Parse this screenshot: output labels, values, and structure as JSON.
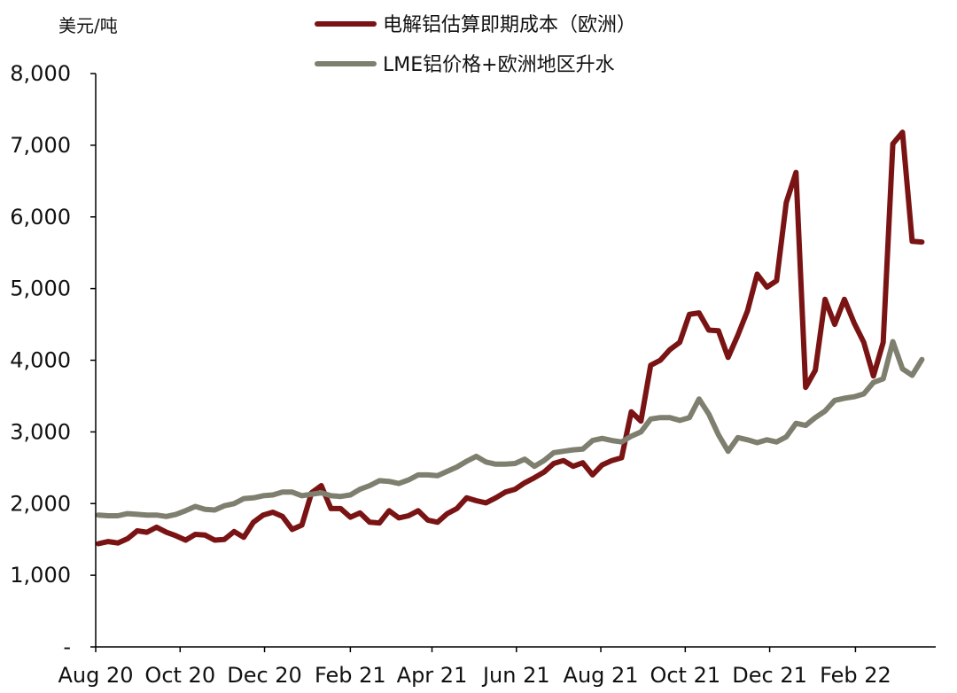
{
  "chart_data": {
    "type": "line",
    "y_unit_label": "美元/吨",
    "ylim": [
      0,
      8000
    ],
    "y_ticks": [
      {
        "value": 0,
        "label": "-"
      },
      {
        "value": 1000,
        "label": "1,000"
      },
      {
        "value": 2000,
        "label": "2,000"
      },
      {
        "value": 3000,
        "label": "3,000"
      },
      {
        "value": 4000,
        "label": "4,000"
      },
      {
        "value": 5000,
        "label": "5,000"
      },
      {
        "value": 6000,
        "label": "6,000"
      },
      {
        "value": 7000,
        "label": "7,000"
      },
      {
        "value": 8000,
        "label": "8,000"
      }
    ],
    "x_range": [
      "2020-08-01",
      "2022-03-31"
    ],
    "x_ticks": [
      {
        "date": "2020-08-01",
        "label": "Aug 20"
      },
      {
        "date": "2020-10-01",
        "label": "Oct 20"
      },
      {
        "date": "2020-12-01",
        "label": "Dec 20"
      },
      {
        "date": "2021-02-01",
        "label": "Feb 21"
      },
      {
        "date": "2021-04-01",
        "label": "Apr 21"
      },
      {
        "date": "2021-06-01",
        "label": "Jun 21"
      },
      {
        "date": "2021-08-01",
        "label": "Aug 21"
      },
      {
        "date": "2021-10-01",
        "label": "Oct 21"
      },
      {
        "date": "2021-12-01",
        "label": "Dec 21"
      },
      {
        "date": "2022-02-01",
        "label": "Feb 22"
      }
    ],
    "grid": false,
    "legend_position": "top",
    "series": [
      {
        "name": "电解铝估算即期成本（欧洲）",
        "color": "#7a1414",
        "points": [
          [
            "2020-08-03",
            1440
          ],
          [
            "2020-08-10",
            1470
          ],
          [
            "2020-08-17",
            1450
          ],
          [
            "2020-08-24",
            1510
          ],
          [
            "2020-08-31",
            1620
          ],
          [
            "2020-09-07",
            1600
          ],
          [
            "2020-09-14",
            1670
          ],
          [
            "2020-09-21",
            1600
          ],
          [
            "2020-09-28",
            1550
          ],
          [
            "2020-10-05",
            1490
          ],
          [
            "2020-10-12",
            1570
          ],
          [
            "2020-10-19",
            1560
          ],
          [
            "2020-10-26",
            1490
          ],
          [
            "2020-11-02",
            1500
          ],
          [
            "2020-11-09",
            1610
          ],
          [
            "2020-11-16",
            1530
          ],
          [
            "2020-11-23",
            1740
          ],
          [
            "2020-11-30",
            1840
          ],
          [
            "2020-12-07",
            1880
          ],
          [
            "2020-12-14",
            1820
          ],
          [
            "2020-12-21",
            1640
          ],
          [
            "2020-12-28",
            1700
          ],
          [
            "2021-01-04",
            2150
          ],
          [
            "2021-01-11",
            2250
          ],
          [
            "2021-01-18",
            1930
          ],
          [
            "2021-01-25",
            1930
          ],
          [
            "2021-02-01",
            1810
          ],
          [
            "2021-02-08",
            1870
          ],
          [
            "2021-02-15",
            1740
          ],
          [
            "2021-02-22",
            1730
          ],
          [
            "2021-03-01",
            1900
          ],
          [
            "2021-03-08",
            1800
          ],
          [
            "2021-03-15",
            1830
          ],
          [
            "2021-03-22",
            1900
          ],
          [
            "2021-03-29",
            1770
          ],
          [
            "2021-04-05",
            1740
          ],
          [
            "2021-04-12",
            1860
          ],
          [
            "2021-04-19",
            1930
          ],
          [
            "2021-04-26",
            2080
          ],
          [
            "2021-05-03",
            2040
          ],
          [
            "2021-05-10",
            2010
          ],
          [
            "2021-05-17",
            2080
          ],
          [
            "2021-05-24",
            2160
          ],
          [
            "2021-05-31",
            2200
          ],
          [
            "2021-06-07",
            2290
          ],
          [
            "2021-06-14",
            2360
          ],
          [
            "2021-06-21",
            2440
          ],
          [
            "2021-06-28",
            2560
          ],
          [
            "2021-07-05",
            2600
          ],
          [
            "2021-07-12",
            2520
          ],
          [
            "2021-07-19",
            2570
          ],
          [
            "2021-07-26",
            2400
          ],
          [
            "2021-08-02",
            2540
          ],
          [
            "2021-08-09",
            2600
          ],
          [
            "2021-08-16",
            2640
          ],
          [
            "2021-08-23",
            3280
          ],
          [
            "2021-08-30",
            3150
          ],
          [
            "2021-09-06",
            3930
          ],
          [
            "2021-09-13",
            4000
          ],
          [
            "2021-09-20",
            4150
          ],
          [
            "2021-09-27",
            4250
          ],
          [
            "2021-10-04",
            4640
          ],
          [
            "2021-10-11",
            4660
          ],
          [
            "2021-10-18",
            4420
          ],
          [
            "2021-10-25",
            4410
          ],
          [
            "2021-11-01",
            4040
          ],
          [
            "2021-11-08",
            4350
          ],
          [
            "2021-11-15",
            4690
          ],
          [
            "2021-11-22",
            5200
          ],
          [
            "2021-11-29",
            5020
          ],
          [
            "2021-12-06",
            5110
          ],
          [
            "2021-12-13",
            6200
          ],
          [
            "2021-12-20",
            6620
          ],
          [
            "2021-12-27",
            3620
          ],
          [
            "2022-01-03",
            3860
          ],
          [
            "2022-01-10",
            4850
          ],
          [
            "2022-01-17",
            4500
          ],
          [
            "2022-01-24",
            4850
          ],
          [
            "2022-01-31",
            4520
          ],
          [
            "2022-02-07",
            4250
          ],
          [
            "2022-02-14",
            3780
          ],
          [
            "2022-02-21",
            4250
          ],
          [
            "2022-02-28",
            7020
          ],
          [
            "2022-03-07",
            7180
          ],
          [
            "2022-03-14",
            5660
          ],
          [
            "2022-03-21",
            5650
          ]
        ]
      },
      {
        "name": "LME铝价格+欧洲地区升水",
        "color": "#7f7f6f",
        "points": [
          [
            "2020-08-03",
            1840
          ],
          [
            "2020-08-10",
            1830
          ],
          [
            "2020-08-17",
            1830
          ],
          [
            "2020-08-24",
            1860
          ],
          [
            "2020-08-31",
            1850
          ],
          [
            "2020-09-07",
            1840
          ],
          [
            "2020-09-14",
            1840
          ],
          [
            "2020-09-21",
            1820
          ],
          [
            "2020-09-28",
            1850
          ],
          [
            "2020-10-05",
            1900
          ],
          [
            "2020-10-12",
            1960
          ],
          [
            "2020-10-19",
            1920
          ],
          [
            "2020-10-26",
            1910
          ],
          [
            "2020-11-02",
            1970
          ],
          [
            "2020-11-09",
            2000
          ],
          [
            "2020-11-16",
            2070
          ],
          [
            "2020-11-23",
            2080
          ],
          [
            "2020-11-30",
            2110
          ],
          [
            "2020-12-07",
            2120
          ],
          [
            "2020-12-14",
            2160
          ],
          [
            "2020-12-21",
            2160
          ],
          [
            "2020-12-28",
            2110
          ],
          [
            "2021-01-04",
            2130
          ],
          [
            "2021-01-11",
            2150
          ],
          [
            "2021-01-18",
            2110
          ],
          [
            "2021-01-25",
            2100
          ],
          [
            "2021-02-01",
            2120
          ],
          [
            "2021-02-08",
            2200
          ],
          [
            "2021-02-15",
            2250
          ],
          [
            "2021-02-22",
            2320
          ],
          [
            "2021-03-01",
            2310
          ],
          [
            "2021-03-08",
            2280
          ],
          [
            "2021-03-15",
            2330
          ],
          [
            "2021-03-22",
            2400
          ],
          [
            "2021-03-29",
            2400
          ],
          [
            "2021-04-05",
            2390
          ],
          [
            "2021-04-12",
            2450
          ],
          [
            "2021-04-19",
            2510
          ],
          [
            "2021-04-26",
            2590
          ],
          [
            "2021-05-03",
            2660
          ],
          [
            "2021-05-10",
            2580
          ],
          [
            "2021-05-17",
            2550
          ],
          [
            "2021-05-24",
            2550
          ],
          [
            "2021-05-31",
            2560
          ],
          [
            "2021-06-07",
            2620
          ],
          [
            "2021-06-14",
            2520
          ],
          [
            "2021-06-21",
            2600
          ],
          [
            "2021-06-28",
            2710
          ],
          [
            "2021-07-05",
            2730
          ],
          [
            "2021-07-12",
            2750
          ],
          [
            "2021-07-19",
            2760
          ],
          [
            "2021-07-26",
            2880
          ],
          [
            "2021-08-02",
            2910
          ],
          [
            "2021-08-09",
            2880
          ],
          [
            "2021-08-16",
            2860
          ],
          [
            "2021-08-23",
            2940
          ],
          [
            "2021-08-30",
            3000
          ],
          [
            "2021-09-06",
            3180
          ],
          [
            "2021-09-13",
            3200
          ],
          [
            "2021-09-20",
            3200
          ],
          [
            "2021-09-27",
            3160
          ],
          [
            "2021-10-04",
            3200
          ],
          [
            "2021-10-11",
            3460
          ],
          [
            "2021-10-18",
            3250
          ],
          [
            "2021-10-25",
            2960
          ],
          [
            "2021-11-01",
            2730
          ],
          [
            "2021-11-08",
            2920
          ],
          [
            "2021-11-15",
            2890
          ],
          [
            "2021-11-22",
            2850
          ],
          [
            "2021-11-29",
            2890
          ],
          [
            "2021-12-06",
            2860
          ],
          [
            "2021-12-13",
            2930
          ],
          [
            "2021-12-20",
            3120
          ],
          [
            "2021-12-27",
            3090
          ],
          [
            "2022-01-03",
            3200
          ],
          [
            "2022-01-10",
            3290
          ],
          [
            "2022-01-17",
            3440
          ],
          [
            "2022-01-24",
            3470
          ],
          [
            "2022-01-31",
            3490
          ],
          [
            "2022-02-07",
            3530
          ],
          [
            "2022-02-14",
            3690
          ],
          [
            "2022-02-21",
            3740
          ],
          [
            "2022-02-28",
            4260
          ],
          [
            "2022-03-07",
            3880
          ],
          [
            "2022-03-14",
            3790
          ],
          [
            "2022-03-21",
            4010
          ]
        ]
      }
    ]
  }
}
